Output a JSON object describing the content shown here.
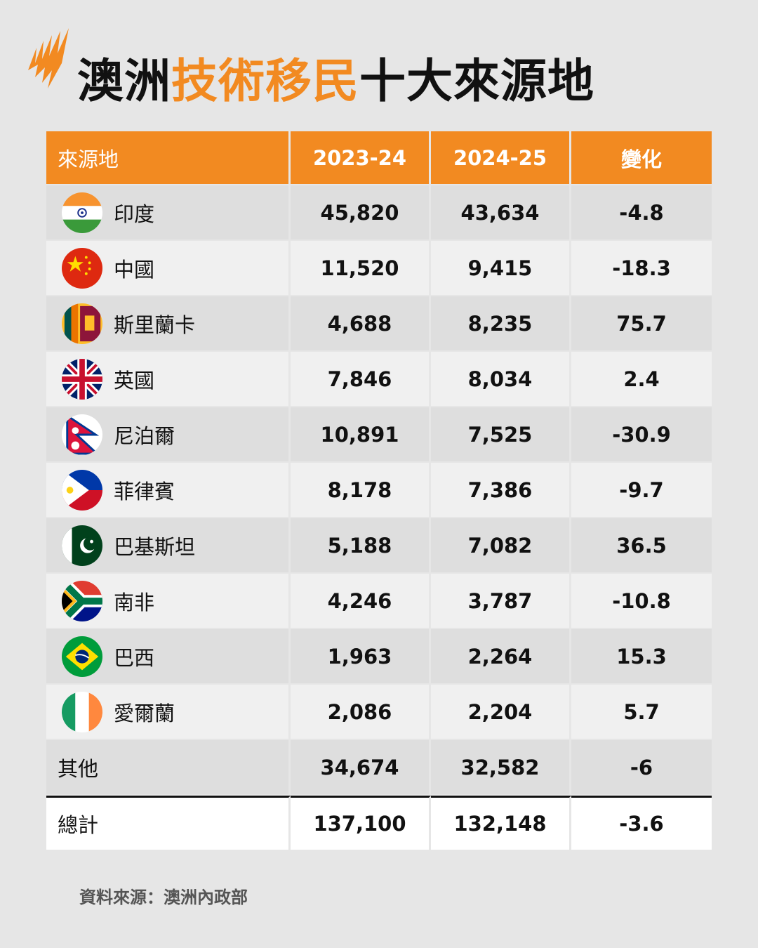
{
  "title": {
    "part1": "澳洲",
    "part2": "技術移民",
    "part3": "十大來源地"
  },
  "colors": {
    "accent": "#f28a21"
  },
  "table": {
    "headers": [
      "來源地",
      "2023-24",
      "2024-25",
      "變化"
    ],
    "rows": [
      {
        "country": "印度",
        "flag": "india",
        "y2324": "45,820",
        "y2425": "43,634",
        "change": "-4.8"
      },
      {
        "country": "中國",
        "flag": "china",
        "y2324": "11,520",
        "y2425": "9,415",
        "change": "-18.3"
      },
      {
        "country": "斯里蘭卡",
        "flag": "srilanka",
        "y2324": "4,688",
        "y2425": "8,235",
        "change": "75.7"
      },
      {
        "country": "英國",
        "flag": "uk",
        "y2324": "7,846",
        "y2425": "8,034",
        "change": "2.4"
      },
      {
        "country": "尼泊爾",
        "flag": "nepal",
        "y2324": "10,891",
        "y2425": "7,525",
        "change": "-30.9"
      },
      {
        "country": "菲律賓",
        "flag": "philippines",
        "y2324": "8,178",
        "y2425": "7,386",
        "change": "-9.7"
      },
      {
        "country": "巴基斯坦",
        "flag": "pakistan",
        "y2324": "5,188",
        "y2425": "7,082",
        "change": "36.5"
      },
      {
        "country": "南非",
        "flag": "southafrica",
        "y2324": "4,246",
        "y2425": "3,787",
        "change": "-10.8"
      },
      {
        "country": "巴西",
        "flag": "brazil",
        "y2324": "1,963",
        "y2425": "2,264",
        "change": "15.3"
      },
      {
        "country": "愛爾蘭",
        "flag": "ireland",
        "y2324": "2,086",
        "y2425": "2,204",
        "change": "5.7"
      }
    ],
    "others": {
      "label": "其他",
      "y2324": "34,674",
      "y2425": "32,582",
      "change": "-6"
    },
    "total": {
      "label": "總計",
      "y2324": "137,100",
      "y2425": "132,148",
      "change": "-3.6"
    }
  },
  "source": "資料來源：澳洲內政部"
}
